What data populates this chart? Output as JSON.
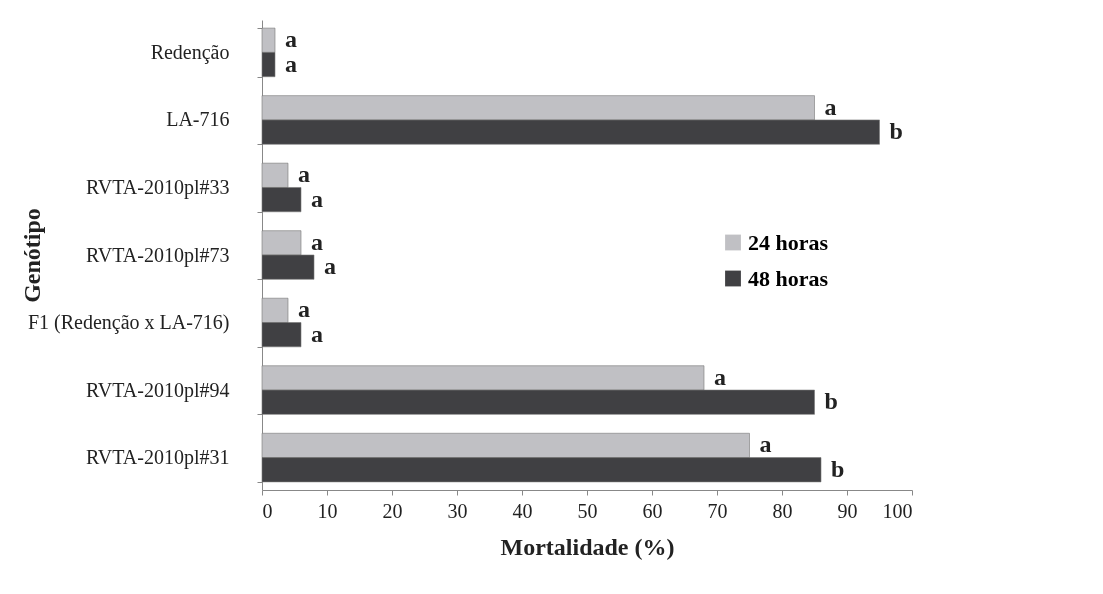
{
  "chart_data": {
    "type": "bar",
    "orientation": "horizontal",
    "xlabel": "Mortalidade (%)",
    "ylabel": "Genótipo",
    "categories": [
      "Redenção",
      "LA-716",
      "RVTA-2010pl#33",
      "RVTA-2010pl#73",
      "F1 (Redenção x LA-716)",
      "RVTA-2010pl#94",
      "RVTA-2010pl#31"
    ],
    "series": [
      {
        "name": "24 horas",
        "color": "#c0c0c4",
        "values": [
          2,
          85,
          4,
          6,
          4,
          68,
          75
        ]
      },
      {
        "name": "48 horas",
        "color": "#404043",
        "values": [
          2,
          95,
          6,
          8,
          6,
          85,
          86
        ]
      }
    ],
    "xlim": [
      0,
      100
    ],
    "xticks": [
      0,
      10,
      20,
      30,
      40,
      50,
      60,
      70,
      80,
      90,
      100
    ],
    "legend": "right",
    "grid": false,
    "annotations": [
      {
        "text": "a",
        "x": 2,
        "y": "Redenção"
      },
      {
        "text": "a",
        "x": 2,
        "y": "Redenção"
      },
      {
        "text": "a",
        "x": 85,
        "y": "LA-716"
      },
      {
        "text": "b",
        "x": 95,
        "y": "LA-716"
      },
      {
        "text": "a",
        "x": 4,
        "y": "RVTA-2010pl#33"
      },
      {
        "text": "a",
        "x": 6,
        "y": "RVTA-2010pl#33"
      },
      {
        "text": "a",
        "x": 6,
        "y": "RVTA-2010pl#73"
      },
      {
        "text": "a",
        "x": 8,
        "y": "RVTA-2010pl#73"
      },
      {
        "text": "a",
        "x": 4,
        "y": "F1 (Redenção x LA-716)"
      },
      {
        "text": "a",
        "x": 6,
        "y": "F1 (Redenção x LA-716)"
      },
      {
        "text": "a",
        "x": 68,
        "y": "RVTA-2010pl#94"
      },
      {
        "text": "b",
        "x": 85,
        "y": "RVTA-2010pl#94"
      },
      {
        "text": "a",
        "x": 75,
        "y": "RVTA-2010pl#31"
      },
      {
        "text": "b",
        "x": 86,
        "y": "RVTA-2010pl#31"
      }
    ]
  }
}
